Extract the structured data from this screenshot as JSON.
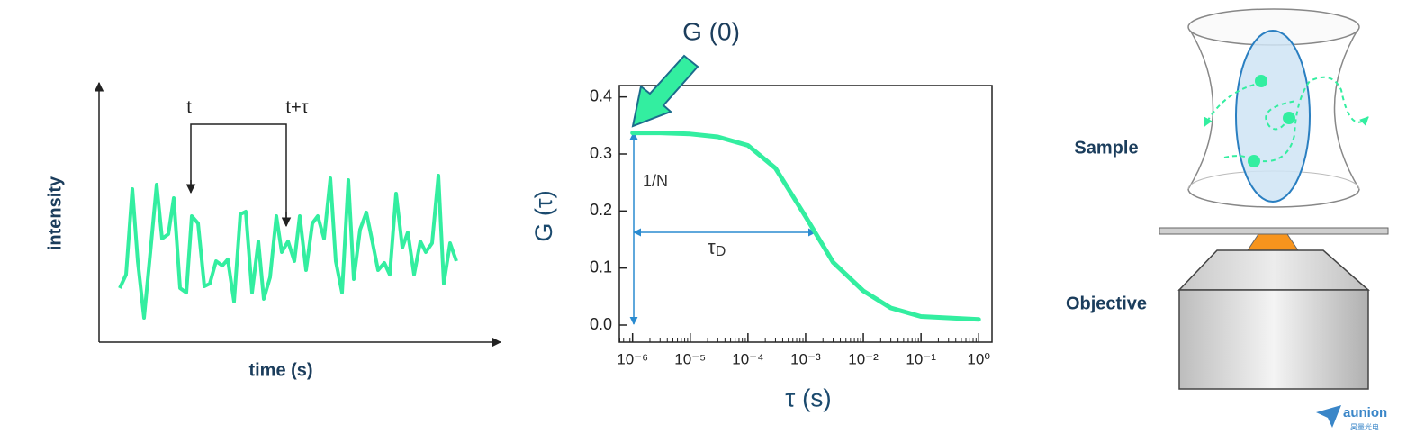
{
  "trace_panel": {
    "y_label": "intensity",
    "x_label": "time (s)",
    "t_label": "t",
    "t_tau_label": "t+τ"
  },
  "chart_data": {
    "type": "line",
    "x_label": "τ (s)",
    "y_label": "G (τ)",
    "annotations": {
      "g0": "G (0)",
      "one_over_n": "1/N",
      "tau_d": "τ",
      "tau_d_sub": "D"
    },
    "x": [
      1e-06,
      3e-06,
      1e-05,
      3e-05,
      0.0001,
      0.0003,
      0.001,
      0.003,
      0.01,
      0.03,
      0.1,
      1
    ],
    "values": [
      0.337,
      0.337,
      0.335,
      0.33,
      0.315,
      0.275,
      0.19,
      0.11,
      0.06,
      0.03,
      0.015,
      0.01
    ],
    "color": "#33eea0",
    "log_x": true,
    "xlim": [
      5.9e-07,
      1.7
    ],
    "ylim": [
      -0.03,
      0.42
    ],
    "xticks": [
      {
        "value": 1e-06,
        "label": "10⁻⁶"
      },
      {
        "value": 1e-05,
        "label": "10⁻⁵"
      },
      {
        "value": 0.0001,
        "label": "10⁻⁴"
      },
      {
        "value": 0.001,
        "label": "10⁻³"
      },
      {
        "value": 0.01,
        "label": "10⁻²"
      },
      {
        "value": 0.1,
        "label": "10⁻¹"
      },
      {
        "value": 1,
        "label": "10⁰"
      }
    ],
    "yticks": [
      {
        "value": 0,
        "label": "0.0"
      },
      0.1,
      0.2,
      0.3,
      0.4
    ]
  },
  "setup": {
    "sample": "Sample",
    "objective": "Objective"
  },
  "logo": {
    "name": "aunion",
    "subtitle": "昊量光电"
  }
}
